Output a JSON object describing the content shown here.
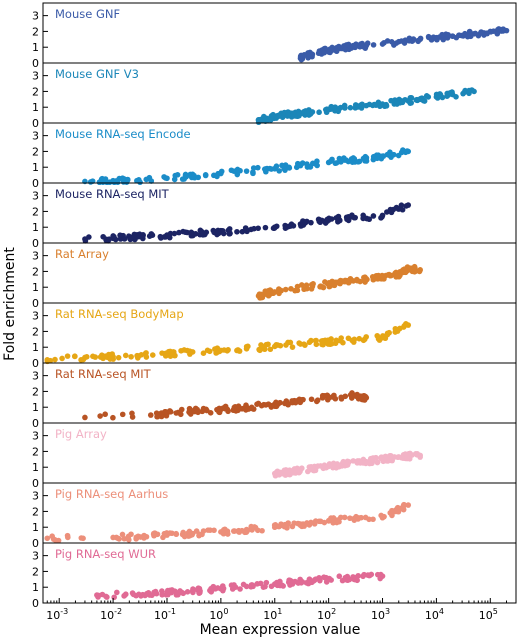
{
  "chart_data": {
    "type": "scatter",
    "xlabel": "Mean expression value",
    "ylabel": "Fold enrichment",
    "x_scale": "log",
    "xlim": [
      0.0005,
      300000
    ],
    "ylim": [
      0,
      3.8
    ],
    "yticks": [
      0,
      1,
      2,
      3
    ],
    "x_tick_labels": [
      {
        "value": 0.001,
        "base": "10",
        "exp": "-3"
      },
      {
        "value": 0.01,
        "base": "10",
        "exp": "-2"
      },
      {
        "value": 0.1,
        "base": "10",
        "exp": "-1"
      },
      {
        "value": 1,
        "base": "10",
        "exp": "0"
      },
      {
        "value": 10,
        "base": "10",
        "exp": "1"
      },
      {
        "value": 100,
        "base": "10",
        "exp": "2"
      },
      {
        "value": 1000,
        "base": "10",
        "exp": "3"
      },
      {
        "value": 10000,
        "base": "10",
        "exp": "4"
      },
      {
        "value": 100000,
        "base": "10",
        "exp": "5"
      }
    ],
    "series": [
      {
        "name": "Mouse GNF",
        "color": "#3a5ba8",
        "x": [
          30,
          40,
          50,
          70,
          100,
          150,
          200,
          300,
          500,
          1000,
          2000,
          5000,
          10000,
          20000,
          50000,
          100000,
          200000
        ],
        "y": [
          0.3,
          0.45,
          0.55,
          0.7,
          0.8,
          0.9,
          1.0,
          1.05,
          1.1,
          1.2,
          1.35,
          1.5,
          1.6,
          1.7,
          1.85,
          2.0,
          2.05
        ]
      },
      {
        "name": "Mouse GNF V3",
        "color": "#1b86b8",
        "x": [
          5,
          7,
          10,
          15,
          20,
          30,
          50,
          100,
          200,
          500,
          1000,
          2000,
          5000,
          10000,
          20000,
          50000
        ],
        "y": [
          0.2,
          0.3,
          0.4,
          0.5,
          0.55,
          0.6,
          0.7,
          0.85,
          0.95,
          1.1,
          1.2,
          1.35,
          1.5,
          1.65,
          1.8,
          2.0
        ]
      },
      {
        "name": "Mouse RNA-seq Encode",
        "color": "#1b8cc8",
        "x": [
          0.003,
          0.01,
          0.03,
          0.1,
          0.3,
          1,
          3,
          10,
          30,
          100,
          200,
          500,
          1000,
          3000
        ],
        "y": [
          0.1,
          0.15,
          0.2,
          0.3,
          0.45,
          0.6,
          0.75,
          0.9,
          1.1,
          1.3,
          1.45,
          1.55,
          1.7,
          2.0
        ]
      },
      {
        "name": "Mouse RNA-seq MIT",
        "color": "#1c2463",
        "x": [
          0.003,
          0.01,
          0.03,
          0.1,
          0.3,
          1,
          3,
          10,
          30,
          100,
          300,
          1000,
          3000
        ],
        "y": [
          0.25,
          0.3,
          0.4,
          0.5,
          0.6,
          0.7,
          0.85,
          1.0,
          1.2,
          1.45,
          1.6,
          1.75,
          2.4
        ]
      },
      {
        "name": "Rat Array",
        "color": "#d9802e",
        "x": [
          5,
          7,
          10,
          20,
          50,
          100,
          200,
          500,
          1000,
          2000,
          3000,
          5000
        ],
        "y": [
          0.45,
          0.6,
          0.7,
          0.9,
          1.05,
          1.2,
          1.35,
          1.5,
          1.65,
          1.8,
          2.2,
          2.1
        ]
      },
      {
        "name": "Rat RNA-seq BodyMap",
        "color": "#e6a615",
        "x": [
          0.0006,
          0.003,
          0.01,
          0.03,
          0.1,
          0.3,
          1,
          3,
          10,
          30,
          100,
          300,
          1000,
          3000
        ],
        "y": [
          0.2,
          0.35,
          0.4,
          0.45,
          0.55,
          0.7,
          0.8,
          0.9,
          1.05,
          1.2,
          1.35,
          1.5,
          1.6,
          2.4
        ]
      },
      {
        "name": "Rat RNA-seq MIT",
        "color": "#b85424",
        "x": [
          0.003,
          0.05,
          0.1,
          0.3,
          1,
          3,
          10,
          30,
          100,
          300,
          500
        ],
        "y": [
          0.35,
          0.5,
          0.6,
          0.75,
          0.85,
          1.0,
          1.2,
          1.4,
          1.6,
          1.75,
          1.6
        ]
      },
      {
        "name": "Pig Array",
        "color": "#f2b3c6",
        "x": [
          10,
          20,
          50,
          100,
          200,
          500,
          1000,
          2000,
          5000
        ],
        "y": [
          0.6,
          0.7,
          0.9,
          1.05,
          1.2,
          1.35,
          1.5,
          1.65,
          1.75
        ]
      },
      {
        "name": "Pig RNA-seq Aarhus",
        "color": "#ec8f7a",
        "x": [
          0.0006,
          0.01,
          0.03,
          0.1,
          0.3,
          1,
          3,
          10,
          30,
          100,
          300,
          1000,
          3000
        ],
        "y": [
          0.3,
          0.35,
          0.4,
          0.5,
          0.6,
          0.7,
          0.85,
          1.0,
          1.2,
          1.4,
          1.55,
          1.6,
          2.4
        ]
      },
      {
        "name": "Pig RNA-seq WUR",
        "color": "#e06a94",
        "x": [
          0.005,
          0.03,
          0.1,
          0.3,
          1,
          3,
          10,
          30,
          100,
          300,
          1000
        ],
        "y": [
          0.5,
          0.55,
          0.65,
          0.75,
          0.9,
          1.05,
          1.2,
          1.35,
          1.5,
          1.6,
          1.7
        ]
      }
    ]
  }
}
